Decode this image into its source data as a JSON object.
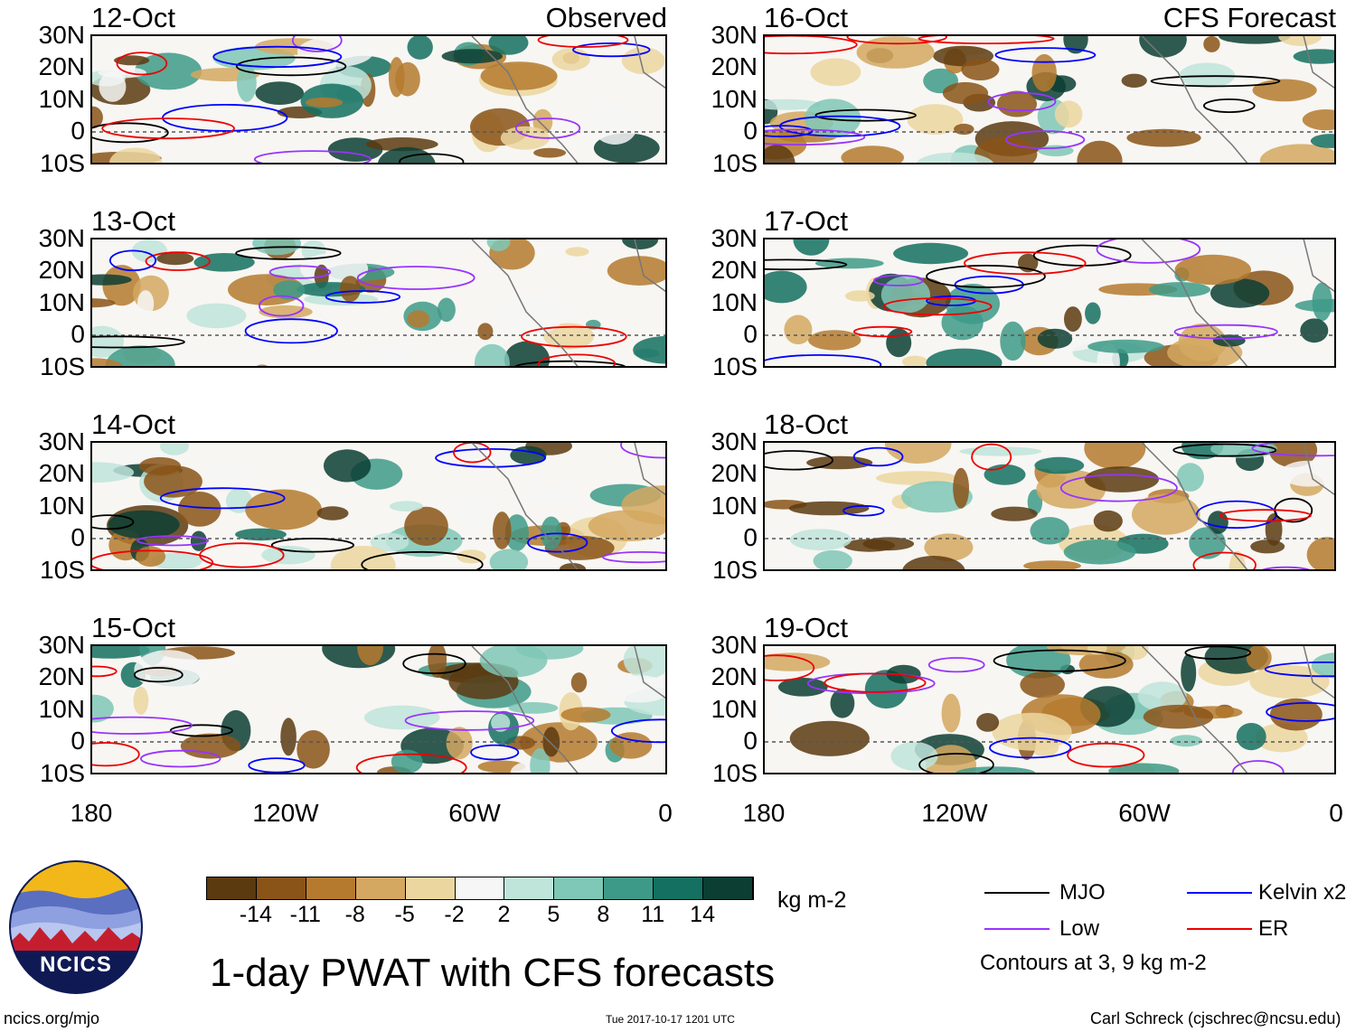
{
  "left_header": "Observed",
  "right_header": "CFS Forecast",
  "left_panels": [
    {
      "date": "12-Oct"
    },
    {
      "date": "13-Oct"
    },
    {
      "date": "14-Oct"
    },
    {
      "date": "15-Oct"
    }
  ],
  "right_panels": [
    {
      "date": "16-Oct"
    },
    {
      "date": "17-Oct"
    },
    {
      "date": "18-Oct"
    },
    {
      "date": "19-Oct"
    }
  ],
  "lat_ticks": [
    "30N",
    "20N",
    "10N",
    "0",
    "10S"
  ],
  "lon_ticks": [
    "180",
    "120W",
    "60W",
    "0"
  ],
  "colorbar": {
    "labels": [
      "-14",
      "-11",
      "-8",
      "-5",
      "-2",
      "2",
      "5",
      "8",
      "11",
      "14"
    ],
    "colors": [
      "#5c3a10",
      "#8a5418",
      "#b57a2e",
      "#d4a860",
      "#ecd6a0",
      "#f6f6f6",
      "#bfe4da",
      "#7fc7b6",
      "#3e9a88",
      "#147060",
      "#0c3e34"
    ],
    "units": "kg m-2"
  },
  "legend": {
    "items": [
      {
        "label": "MJO",
        "color": "#000000"
      },
      {
        "label": "Kelvin x2",
        "color": "#0000ff"
      },
      {
        "label": "Low",
        "color": "#9933ff"
      },
      {
        "label": "ER",
        "color": "#ee0000"
      }
    ],
    "note": "Contours at 3, 9 kg m-2"
  },
  "title": "1-day PWAT with CFS forecasts",
  "logo_text": "NCICS",
  "footer": {
    "url": "ncics.org/mjo",
    "timestamp": "Tue 2017-10-17 1201 UTC",
    "credit": "Carl Schreck (cjschrec@ncsu.edu)"
  }
}
